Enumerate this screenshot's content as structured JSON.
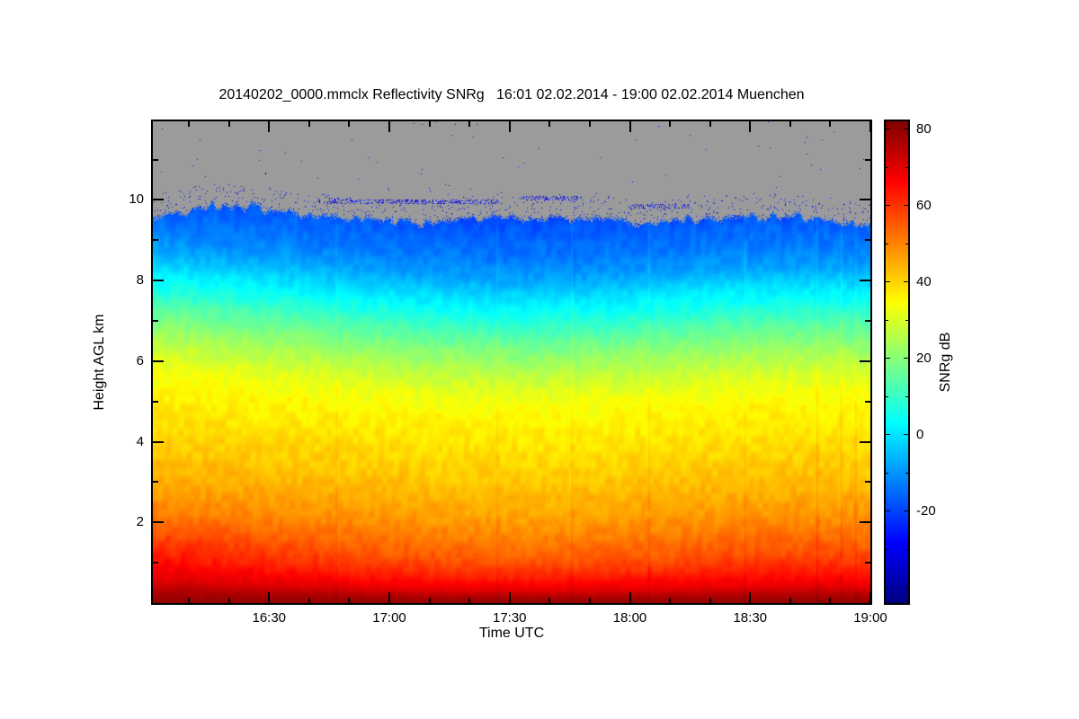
{
  "chart_data": {
    "type": "heatmap",
    "title": "20140202_0000.mmclx Reflectivity SNRg   16:01 02.02.2014 - 19:00 02.02.2014 Muenchen",
    "instrument_file": "20140202_0000.mmclx",
    "quantity": "Reflectivity SNRg",
    "time_start": "16:01 02.02.2014",
    "time_end": "19:00 02.02.2014",
    "station": "Muenchen",
    "xlabel": "Time UTC",
    "ylabel": "Height AGL km",
    "colorbar_label": "SNRg dB",
    "x_range_hours": [
      16.0167,
      19.0
    ],
    "y_range_km": [
      0,
      11.95
    ],
    "x_ticks": [
      {
        "hour": 16.5,
        "label": "16:30"
      },
      {
        "hour": 17.0,
        "label": "17:00"
      },
      {
        "hour": 17.5,
        "label": "17:30"
      },
      {
        "hour": 18.0,
        "label": "18:00"
      },
      {
        "hour": 18.5,
        "label": "18:30"
      },
      {
        "hour": 19.0,
        "label": "19:00"
      }
    ],
    "x_minor_interval_min": 10,
    "y_ticks": [
      {
        "km": 2,
        "label": "2"
      },
      {
        "km": 4,
        "label": "4"
      },
      {
        "km": 6,
        "label": "6"
      },
      {
        "km": 8,
        "label": "8"
      },
      {
        "km": 10,
        "label": "10"
      }
    ],
    "y_minor_km": [
      1,
      3,
      5,
      7,
      9,
      11
    ],
    "color_scale": {
      "palette": "jet",
      "unit": "dB",
      "vmin": -44,
      "vmax": 82,
      "ticks": [
        {
          "value": 80,
          "label": "80"
        },
        {
          "value": 60,
          "label": "60"
        },
        {
          "value": 40,
          "label": "40"
        },
        {
          "value": 20,
          "label": "20"
        },
        {
          "value": 0,
          "label": "0"
        },
        {
          "value": -20,
          "label": "-20"
        }
      ],
      "minor_values": [
        70,
        50,
        30,
        10,
        -10,
        -30,
        -40
      ],
      "no_signal_color": "#9b9b9b"
    },
    "mean_profile": {
      "heights_km": [
        0,
        0.15,
        0.3,
        0.6,
        1.0,
        1.5,
        2.0,
        2.5,
        3.0,
        3.5,
        4.0,
        4.5,
        5.0,
        5.5,
        6.0,
        6.5,
        7.0,
        7.5,
        8.0,
        8.5,
        9.0,
        9.3,
        9.6,
        10.2
      ],
      "snr_db": [
        80,
        76,
        70,
        63,
        56,
        51,
        47,
        44,
        41.5,
        39.5,
        37.5,
        35.5,
        33,
        28,
        22,
        15,
        7,
        0,
        -8,
        -13,
        -16,
        -18,
        -20,
        -21
      ]
    },
    "height_shift": {
      "hours": [
        16.02,
        16.3,
        16.6,
        16.9,
        17.2,
        17.5,
        17.8,
        18.1,
        18.4,
        18.7,
        19.0
      ],
      "km": [
        0.75,
        0.6,
        0.45,
        0.25,
        0.1,
        0.0,
        0.05,
        0.15,
        0.3,
        0.35,
        0.3
      ]
    },
    "cloud_top": {
      "hours": [
        16.02,
        16.25,
        16.45,
        16.7,
        16.95,
        17.2,
        17.45,
        17.7,
        17.95,
        18.2,
        18.45,
        18.7,
        18.85,
        19.0
      ],
      "km": [
        9.5,
        9.8,
        9.85,
        9.6,
        9.5,
        9.45,
        9.6,
        9.5,
        9.45,
        9.5,
        9.55,
        9.6,
        9.45,
        9.4
      ]
    },
    "scattered_layers": [
      {
        "from_hour": 16.7,
        "to_hour": 17.45,
        "km": 9.95
      },
      {
        "from_hour": 17.55,
        "to_hour": 17.8,
        "km": 10.05
      },
      {
        "from_hour": 18.0,
        "to_hour": 18.25,
        "km": 9.85
      }
    ],
    "bright_streaks": [
      {
        "hour": 16.78,
        "db": 2
      },
      {
        "hour": 17.45,
        "db": 2
      },
      {
        "hour": 17.76,
        "db": 2.5
      },
      {
        "hour": 18.08,
        "db": 2.5
      },
      {
        "hour": 18.48,
        "db": 2
      },
      {
        "hour": 18.78,
        "db": 3
      },
      {
        "hour": 18.88,
        "db": 3
      },
      {
        "hour": 18.94,
        "db": 2.5
      }
    ],
    "noise": {
      "coarse_amp_db": 2.3,
      "fine_amp_db": 0.9,
      "speckle_near_top_prob": 0.03,
      "speckle_band_km": 0.55,
      "speckle_far_prob": 0.0008,
      "layer_prob": 0.3,
      "layer_half_km": 0.06,
      "cloud_edge_jitter_km": 0.14
    }
  }
}
